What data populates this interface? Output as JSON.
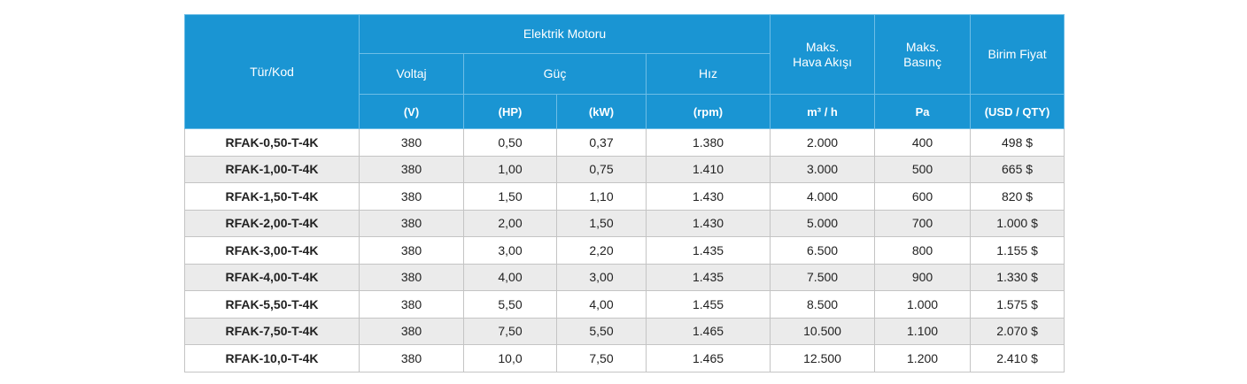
{
  "table": {
    "header": {
      "type_code": "Tür/Kod",
      "motor": "Elektrik Motoru",
      "voltage": "Voltaj",
      "power": "Güç",
      "speed": "Hız",
      "airflow": [
        "Maks.",
        "Hava Akışı"
      ],
      "pressure": [
        "Maks.",
        "Basınç"
      ],
      "price": "Birim Fiyat"
    },
    "units": [
      "(V)",
      "(HP)",
      "(kW)",
      "(rpm)",
      "m³ / h",
      "Pa",
      "(USD / QTY)"
    ],
    "rows": [
      [
        "RFAK-0,50-T-4K",
        "380",
        "0,50",
        "0,37",
        "1.380",
        "2.000",
        "400",
        "498 $"
      ],
      [
        "RFAK-1,00-T-4K",
        "380",
        "1,00",
        "0,75",
        "1.410",
        "3.000",
        "500",
        "665 $"
      ],
      [
        "RFAK-1,50-T-4K",
        "380",
        "1,50",
        "1,10",
        "1.430",
        "4.000",
        "600",
        "820 $"
      ],
      [
        "RFAK-2,00-T-4K",
        "380",
        "2,00",
        "1,50",
        "1.430",
        "5.000",
        "700",
        "1.000 $"
      ],
      [
        "RFAK-3,00-T-4K",
        "380",
        "3,00",
        "2,20",
        "1.435",
        "6.500",
        "800",
        "1.155 $"
      ],
      [
        "RFAK-4,00-T-4K",
        "380",
        "4,00",
        "3,00",
        "1.435",
        "7.500",
        "900",
        "1.330 $"
      ],
      [
        "RFAK-5,50-T-4K",
        "380",
        "5,50",
        "4,00",
        "1.455",
        "8.500",
        "1.000",
        "1.575 $"
      ],
      [
        "RFAK-7,50-T-4K",
        "380",
        "7,50",
        "5,50",
        "1.465",
        "10.500",
        "1.100",
        "2.070 $"
      ],
      [
        "RFAK-10,0-T-4K",
        "380",
        "10,0",
        "7,50",
        "1.465",
        "12.500",
        "1.200",
        "2.410 $"
      ]
    ]
  }
}
